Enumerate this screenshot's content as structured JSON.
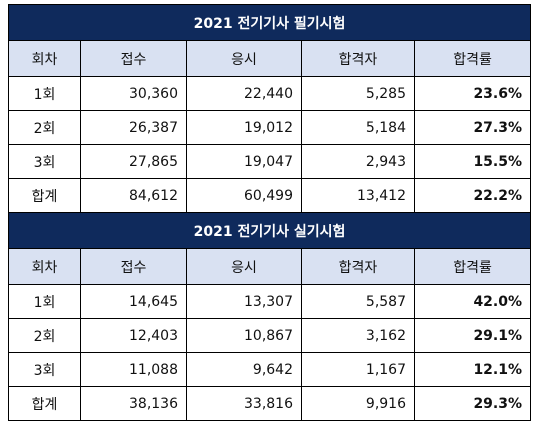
{
  "colors": {
    "title_bg": "#0f2a5c",
    "header_bg": "#d9e1f2",
    "rate_text": "#2e75b6"
  },
  "tables": [
    {
      "title": "2021 전기기사 필기시험",
      "headers": [
        "회차",
        "접수",
        "응시",
        "합격자",
        "합격률"
      ],
      "rows": [
        [
          "1회",
          "30,360",
          "22,440",
          "5,285",
          "23.6%"
        ],
        [
          "2회",
          "26,387",
          "19,012",
          "5,184",
          "27.3%"
        ],
        [
          "3회",
          "27,865",
          "19,047",
          "2,943",
          "15.5%"
        ],
        [
          "합계",
          "84,612",
          "60,499",
          "13,412",
          "22.2%"
        ]
      ]
    },
    {
      "title": "2021 전기기사 실기시험",
      "headers": [
        "회차",
        "접수",
        "응시",
        "합격자",
        "합격률"
      ],
      "rows": [
        [
          "1회",
          "14,645",
          "13,307",
          "5,587",
          "42.0%"
        ],
        [
          "2회",
          "12,403",
          "10,867",
          "3,162",
          "29.1%"
        ],
        [
          "3회",
          "11,088",
          "9,642",
          "1,167",
          "12.1%"
        ],
        [
          "합계",
          "38,136",
          "33,816",
          "9,916",
          "29.3%"
        ]
      ]
    }
  ]
}
